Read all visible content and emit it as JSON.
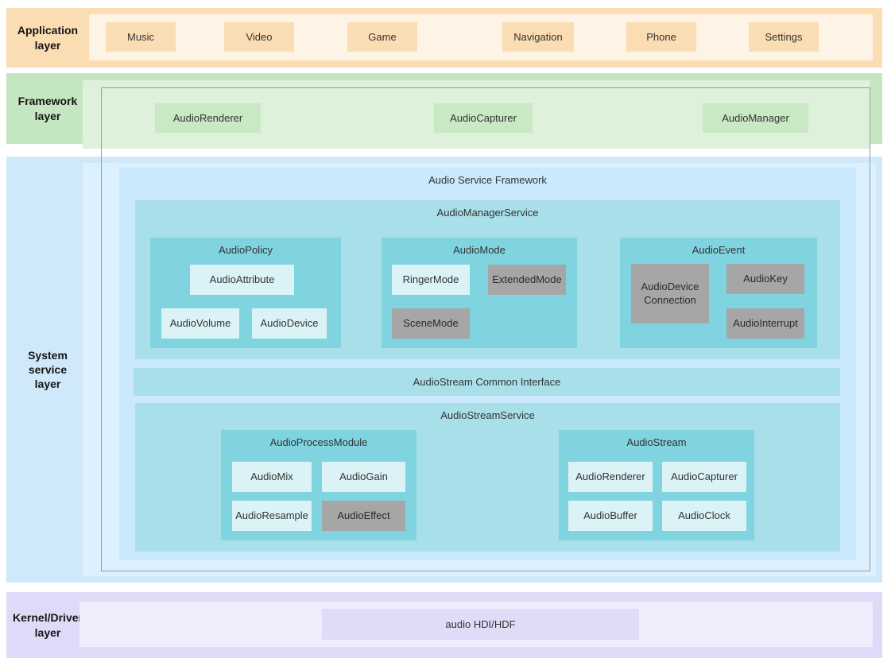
{
  "application_layer": {
    "label": "Application layer",
    "apps": [
      "Music",
      "Video",
      "Game",
      "Navigation",
      "Phone",
      "Settings"
    ]
  },
  "framework_layer": {
    "label": "Framework layer",
    "modules": [
      "AudioRenderer",
      "AudioCapturer",
      "AudioManager"
    ]
  },
  "system_service_layer": {
    "label": "System service layer",
    "audio_service_framework": {
      "title": "Audio Service Framework",
      "audio_manager_service": {
        "title": "AudioManagerService",
        "audio_policy": {
          "title": "AudioPolicy",
          "items": [
            "AudioAttribute",
            "AudioVolume",
            "AudioDevice"
          ]
        },
        "audio_mode": {
          "title": "AudioMode",
          "items": [
            "RingerMode",
            "ExtendedMode",
            "SceneMode"
          ]
        },
        "audio_event": {
          "title": "AudioEvent",
          "items": [
            "AudioDevice Connection",
            "AudioKey",
            "AudioInterrupt"
          ]
        }
      },
      "audio_stream_common_interface": "AudioStream Common Interface",
      "audio_stream_service": {
        "title": "AudioStreamService",
        "audio_process_module": {
          "title": "AudioProcessModule",
          "items": [
            "AudioMix",
            "AudioGain",
            "AudioResample",
            "AudioEffect"
          ]
        },
        "audio_stream": {
          "title": "AudioStream",
          "items": [
            "AudioRenderer",
            "AudioCapturer",
            "AudioBuffer",
            "AudioClock"
          ]
        }
      }
    }
  },
  "kernel_driver_layer": {
    "label": "Kernel/Driver layer",
    "box": "audio HDI/HDF"
  },
  "colors": {
    "application_layer": "#fbddb3",
    "framework_layer": "#c4e6c0",
    "system_service_layer": "#cfe9fa",
    "service_panel_teal": "#a9dfe9",
    "group_teal": "#7fd4e0",
    "leaf_light": "#dbf3f7",
    "leaf_gray": "#a6a6a6",
    "kernel_layer": "#dedaf7"
  }
}
